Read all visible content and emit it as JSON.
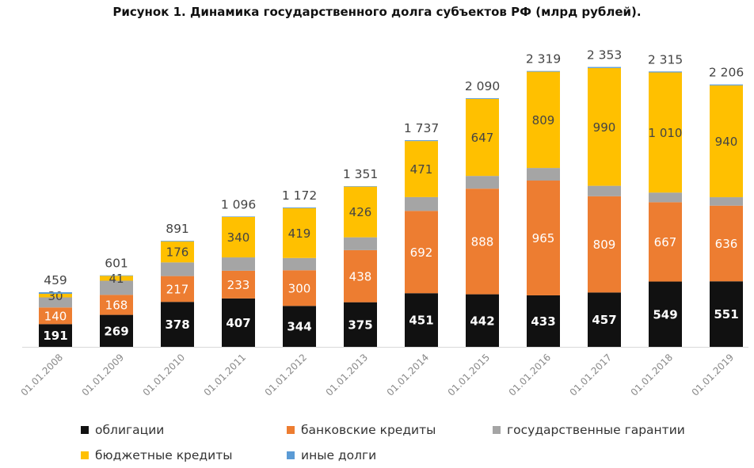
{
  "chart_data": {
    "type": "bar",
    "stacked": true,
    "title": "Рисунок 1. Динамика государственного долга субъектов РФ (млрд рублей).",
    "categories": [
      "01.01.2008",
      "01.01.2009",
      "01.01.2010",
      "01.01.2011",
      "01.01.2012",
      "01.01.2013",
      "01.01.2014",
      "01.01.2015",
      "01.01.2016",
      "01.01.2017",
      "01.01.2018",
      "01.01.2019"
    ],
    "totals": [
      459,
      601,
      891,
      1096,
      1172,
      1351,
      1737,
      2090,
      2319,
      2353,
      2315,
      2206
    ],
    "total_labels": [
      "459",
      "601",
      "891",
      "1 096",
      "1 172",
      "1 351",
      "1 737",
      "2 090",
      "2 319",
      "2 353",
      "2 315",
      "2 206"
    ],
    "series": [
      {
        "name": "облигации",
        "color": "#111111",
        "values": [
          191,
          269,
          378,
          407,
          344,
          375,
          451,
          442,
          433,
          457,
          549,
          551
        ],
        "labels": [
          "191",
          "269",
          "378",
          "407",
          "344",
          "375",
          "451",
          "442",
          "433",
          "457",
          "549",
          "551"
        ]
      },
      {
        "name": "банковские кредиты",
        "color": "#ED7D31",
        "values": [
          140,
          168,
          217,
          233,
          300,
          438,
          692,
          888,
          965,
          809,
          667,
          636
        ],
        "labels": [
          "140",
          "168",
          "217",
          "233",
          "300",
          "438",
          "692",
          "888",
          "965",
          "809",
          "667",
          "636"
        ]
      },
      {
        "name": "государственные гарантии",
        "color": "#A5A5A5",
        "values": [
          85,
          119,
          115,
          112,
          103,
          108,
          116,
          107,
          106,
          88,
          81,
          71
        ],
        "labels": []
      },
      {
        "name": "бюджетные кредиты",
        "color": "#FFC000",
        "values": [
          30,
          41,
          176,
          340,
          419,
          426,
          471,
          647,
          809,
          990,
          1010,
          940
        ],
        "labels": [
          "30",
          "41",
          "176",
          "340",
          "419",
          "426",
          "471",
          "647",
          "809",
          "990",
          "1 010",
          "940"
        ]
      },
      {
        "name": "иные долги",
        "color": "#5B9BD5",
        "values": [
          13,
          4,
          5,
          4,
          6,
          4,
          7,
          6,
          6,
          9,
          8,
          8
        ],
        "labels": []
      }
    ],
    "ylim": [
      0,
      2450
    ],
    "grid": false,
    "legend_position": "bottom"
  }
}
